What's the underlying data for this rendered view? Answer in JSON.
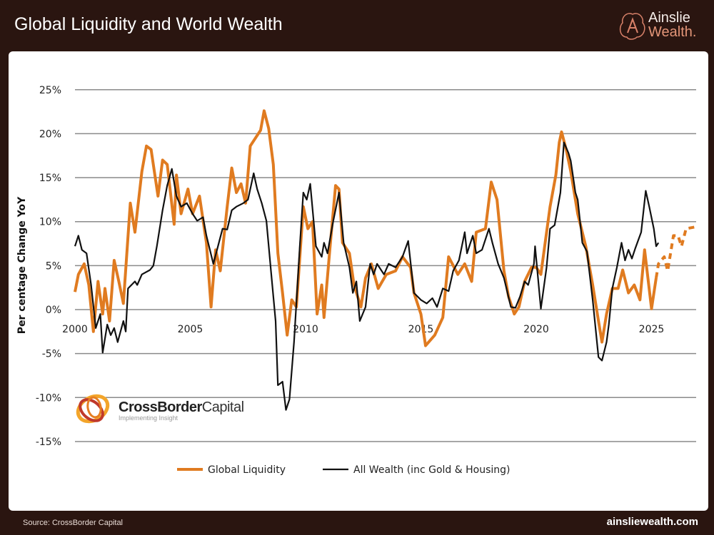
{
  "header": {
    "title": "Global Liquidity and World Wealth",
    "logo_line1": "Ainslie",
    "logo_line2": "Wealth."
  },
  "footer": {
    "source": "Source: CrossBorder Capital",
    "website": "ainsliewealth.com"
  },
  "watermark": {
    "name_bold": "CrossBorder",
    "name_light": "Capital",
    "tagline": "Implementing Insight"
  },
  "chart_data": {
    "type": "line",
    "title": "",
    "xlabel": "",
    "ylabel": "Per centage Change YoY",
    "xlim": [
      2000,
      2027.2
    ],
    "ylim": [
      -15,
      25
    ],
    "x_ticks": [
      "2000",
      "2005",
      "2010",
      "2015",
      "2020",
      "2025"
    ],
    "y_ticks": [
      "25%",
      "20%",
      "15%",
      "10%",
      "5%",
      "0%",
      "-5%",
      "-10%",
      "-15%"
    ],
    "y_tick_values": [
      25,
      20,
      15,
      10,
      5,
      0,
      -5,
      -10,
      -15
    ],
    "grid": "horizontal",
    "legend": "bottom",
    "colors": {
      "global_liquidity": "#e07b20",
      "all_wealth": "#111111"
    },
    "series": [
      {
        "name": "Global Liquidity",
        "color": "#e07b20",
        "style": "solid",
        "x": [
          2000.0,
          2000.15,
          2000.4,
          2000.6,
          2000.8,
          2001.0,
          2001.2,
          2001.3,
          2001.5,
          2001.7,
          2001.9,
          2002.1,
          2002.4,
          2002.6,
          2002.9,
          2003.1,
          2003.3,
          2003.6,
          2003.8,
          2004.0,
          2004.3,
          2004.4,
          2004.6,
          2004.9,
          2005.1,
          2005.4,
          2005.7,
          2005.9,
          2006.1,
          2006.3,
          2006.6,
          2006.8,
          2007.0,
          2007.2,
          2007.4,
          2007.6,
          2008.05,
          2008.2,
          2008.4,
          2008.6,
          2008.8,
          2009.0,
          2009.2,
          2009.4,
          2009.6,
          2009.9,
          2010.1,
          2010.3,
          2010.5,
          2010.7,
          2010.8,
          2011.05,
          2011.3,
          2011.45,
          2011.6,
          2011.9,
          2012.1,
          2012.4,
          2012.6,
          2012.85,
          2013.15,
          2013.5,
          2013.9,
          2014.2,
          2014.55,
          2014.7,
          2015.0,
          2015.2,
          2015.6,
          2015.95,
          2016.2,
          2016.6,
          2016.9,
          2017.2,
          2017.4,
          2017.8,
          2018.05,
          2018.3,
          2018.6,
          2018.8,
          2019.05,
          2019.25,
          2019.5,
          2019.8,
          2020.0,
          2020.2,
          2020.6,
          2020.85,
          2021.0,
          2021.1,
          2021.3,
          2021.5,
          2021.8,
          2022.15,
          2022.45,
          2022.7,
          2022.85,
          2023.05,
          2023.3,
          2023.55,
          2023.75,
          2024.0,
          2024.25,
          2024.5,
          2024.7,
          2025.0,
          2025.2
        ],
        "values": [
          2.0,
          4.0,
          5.2,
          2.8,
          -2.5,
          3.2,
          -0.5,
          2.4,
          -1.3,
          5.6,
          3.2,
          0.7,
          12.1,
          8.8,
          15.7,
          18.6,
          18.2,
          12.9,
          17.0,
          16.5,
          9.7,
          15.3,
          10.9,
          13.7,
          10.9,
          12.9,
          7.6,
          0.3,
          6.8,
          4.4,
          11.7,
          16.1,
          13.3,
          14.3,
          12.1,
          18.6,
          20.4,
          22.6,
          20.6,
          16.5,
          6.4,
          1.9,
          -2.9,
          1.1,
          0.3,
          11.7,
          9.2,
          10.0,
          -0.5,
          2.8,
          -0.9,
          6.8,
          14.1,
          13.7,
          7.6,
          6.4,
          2.8,
          0.3,
          3.6,
          5.2,
          2.4,
          4.0,
          4.4,
          6.0,
          4.8,
          1.9,
          -0.5,
          -4.1,
          -2.9,
          -0.9,
          6.0,
          4.0,
          5.2,
          3.2,
          8.8,
          9.2,
          14.5,
          12.5,
          4.4,
          1.5,
          -0.5,
          0.3,
          3.2,
          4.8,
          4.8,
          4.0,
          11.7,
          15.3,
          19.0,
          20.2,
          18.2,
          15.7,
          10.9,
          7.2,
          2.8,
          -1.3,
          -3.7,
          -0.5,
          2.4,
          2.4,
          4.5,
          1.9,
          2.8,
          1.1,
          6.8,
          0.1,
          3.6
        ]
      },
      {
        "color": "#e07b20",
        "style": "dashed",
        "x": [
          2025.2,
          2025.3,
          2025.55,
          2025.7,
          2025.95,
          2026.15,
          2026.3,
          2026.5,
          2026.9
        ],
        "values": [
          3.6,
          5.2,
          6.0,
          4.4,
          8.4,
          8.4,
          7.2,
          9.2,
          9.4
        ]
      },
      {
        "name": "All Wealth (inc Gold & Housing)",
        "color": "#111111",
        "style": "solid",
        "x": [
          2000.0,
          2000.15,
          2000.3,
          2000.5,
          2000.7,
          2000.9,
          2001.1,
          2001.2,
          2001.4,
          2001.55,
          2001.7,
          2001.85,
          2002.1,
          2002.2,
          2002.3,
          2002.6,
          2002.7,
          2002.9,
          2003.25,
          2003.4,
          2003.55,
          2003.8,
          2004.0,
          2004.2,
          2004.4,
          2004.6,
          2004.85,
          2005.1,
          2005.3,
          2005.55,
          2005.7,
          2006.0,
          2006.2,
          2006.4,
          2006.6,
          2006.8,
          2007.0,
          2007.3,
          2007.5,
          2007.75,
          2007.9,
          2008.1,
          2008.3,
          2008.5,
          2008.7,
          2008.8,
          2009.0,
          2009.15,
          2009.3,
          2009.5,
          2009.75,
          2009.9,
          2010.05,
          2010.2,
          2010.45,
          2010.7,
          2010.8,
          2010.95,
          2011.2,
          2011.45,
          2011.65,
          2011.9,
          2012.05,
          2012.2,
          2012.35,
          2012.6,
          2012.8,
          2012.95,
          2013.1,
          2013.4,
          2013.6,
          2013.9,
          2014.2,
          2014.45,
          2014.7,
          2015.0,
          2015.25,
          2015.5,
          2015.7,
          2015.95,
          2016.2,
          2016.4,
          2016.65,
          2016.9,
          2017.0,
          2017.25,
          2017.4,
          2017.65,
          2017.95,
          2018.1,
          2018.35,
          2018.6,
          2018.9,
          2019.1,
          2019.3,
          2019.5,
          2019.65,
          2019.9,
          2019.95,
          2020.2,
          2020.45,
          2020.6,
          2020.8,
          2021.05,
          2021.2,
          2021.4,
          2021.5,
          2021.7,
          2021.8,
          2022.0,
          2022.2,
          2022.45,
          2022.7,
          2022.85,
          2023.05,
          2023.15,
          2023.3,
          2023.5,
          2023.7,
          2023.85,
          2024.0,
          2024.15,
          2024.3,
          2024.55,
          2024.75,
          2024.9,
          2025.1,
          2025.2,
          2025.3
        ],
        "values": [
          7.2,
          8.4,
          6.8,
          6.4,
          2.8,
          -2.1,
          -0.5,
          -4.9,
          -1.7,
          -2.9,
          -2.1,
          -3.7,
          -1.3,
          -2.5,
          2.4,
          3.2,
          2.8,
          4.0,
          4.5,
          5.0,
          7.2,
          11.3,
          14.1,
          16.0,
          12.9,
          11.7,
          12.1,
          10.9,
          10.1,
          10.5,
          8.4,
          5.2,
          7.2,
          9.2,
          9.1,
          11.3,
          11.7,
          12.1,
          12.5,
          15.5,
          13.7,
          12.1,
          10.1,
          4.4,
          -1.3,
          -8.6,
          -8.2,
          -11.4,
          -10.2,
          -3.7,
          7.2,
          13.3,
          12.5,
          14.3,
          7.2,
          6.0,
          7.6,
          6.4,
          10.1,
          13.3,
          7.6,
          4.8,
          1.9,
          3.2,
          -1.3,
          0.3,
          5.2,
          4.0,
          5.2,
          4.0,
          5.2,
          4.8,
          6.0,
          7.8,
          1.9,
          1.1,
          0.7,
          1.3,
          0.3,
          2.4,
          2.1,
          4.4,
          5.6,
          8.8,
          6.4,
          8.4,
          6.4,
          6.8,
          9.2,
          7.6,
          5.2,
          3.6,
          0.3,
          0.2,
          1.5,
          3.2,
          2.8,
          5.2,
          7.2,
          0.1,
          4.8,
          9.2,
          9.6,
          13.3,
          19.0,
          17.8,
          16.9,
          13.3,
          12.5,
          7.6,
          6.6,
          1.1,
          -5.4,
          -5.8,
          -3.7,
          -1.7,
          2.4,
          4.8,
          7.6,
          5.6,
          6.8,
          5.8,
          7.0,
          8.8,
          13.5,
          11.7,
          9.2,
          7.2,
          7.6
        ]
      }
    ]
  }
}
